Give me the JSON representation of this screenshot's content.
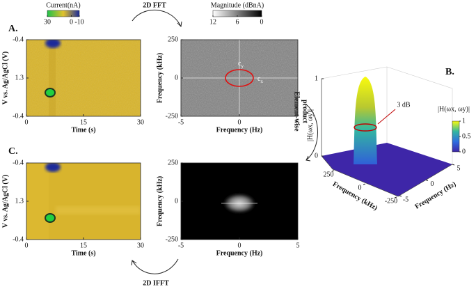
{
  "panel_labels": [
    "A.",
    "B.",
    "C."
  ],
  "fft_label": "2D FFT",
  "ifft_label": "2D IFFT",
  "product_label": [
    "Element-wise",
    "product"
  ],
  "chart_data": [
    {
      "type": "heatmap",
      "colorbar": {
        "title": "Current(nA)",
        "ticks": [
          30,
          0,
          -10
        ],
        "colors": [
          "#1fc24a",
          "#e2c22c",
          "#1a2a9a"
        ]
      },
      "xlabel": "Time (s)",
      "ylabel": "V vs. Ag/AgCl (V)",
      "xlim": [
        0,
        30
      ],
      "xticks": [
        0,
        15,
        30
      ],
      "yticks": [
        -0.4,
        1.3,
        -0.4
      ]
    },
    {
      "type": "heatmap",
      "colorbar": {
        "title": "Magnitude (dBnA)",
        "ticks": [
          12,
          6,
          0
        ],
        "colors": [
          "#ffffff",
          "#000000"
        ]
      },
      "xlabel": "Frequency (Hz)",
      "ylabel": "Frequency (kHz)",
      "xlim": [
        -5,
        5
      ],
      "xticks": [
        -5,
        0,
        5
      ],
      "ylim": [
        -250,
        250
      ],
      "yticks": [
        -250,
        0,
        250
      ],
      "annotations": [
        {
          "text": "c",
          "sub": "y"
        },
        {
          "text": "c",
          "sub": "x"
        }
      ]
    },
    {
      "type": "heatmap",
      "xlabel": "Time (s)",
      "ylabel": "V vs. Ag/AgCl (V)",
      "xlim": [
        0,
        30
      ],
      "xticks": [
        0,
        15,
        30
      ],
      "yticks": [
        -0.4,
        1.3,
        -0.4
      ]
    },
    {
      "type": "heatmap",
      "xlabel": "Frequency (Hz)",
      "ylabel": "Frequency (kHz)",
      "xlim": [
        -5,
        5
      ],
      "xticks": [
        -5,
        0,
        5
      ],
      "ylim": [
        -250,
        250
      ],
      "yticks": [
        -250,
        0,
        250
      ]
    },
    {
      "type": "surface",
      "zlabel": "|H(ωx, ωy)|",
      "xlabel": "Frequency (Hz)",
      "ylabel": "Frequency (kHz)",
      "xlim": [
        -5,
        5
      ],
      "xticks": [
        -5,
        0,
        5
      ],
      "ylim": [
        -250,
        250
      ],
      "yticks": [
        250,
        0,
        -250
      ],
      "zlim": [
        0,
        1
      ],
      "zticks": [
        0,
        1
      ],
      "colorbar": {
        "title": "|H(ωx, ωy)|",
        "ticks": [
          1,
          0.5,
          0
        ],
        "colors": [
          "#f9fb0e",
          "#33b7a0",
          "#2f6ee0",
          "#3e26a8"
        ]
      },
      "annotation": "3 dB"
    }
  ]
}
